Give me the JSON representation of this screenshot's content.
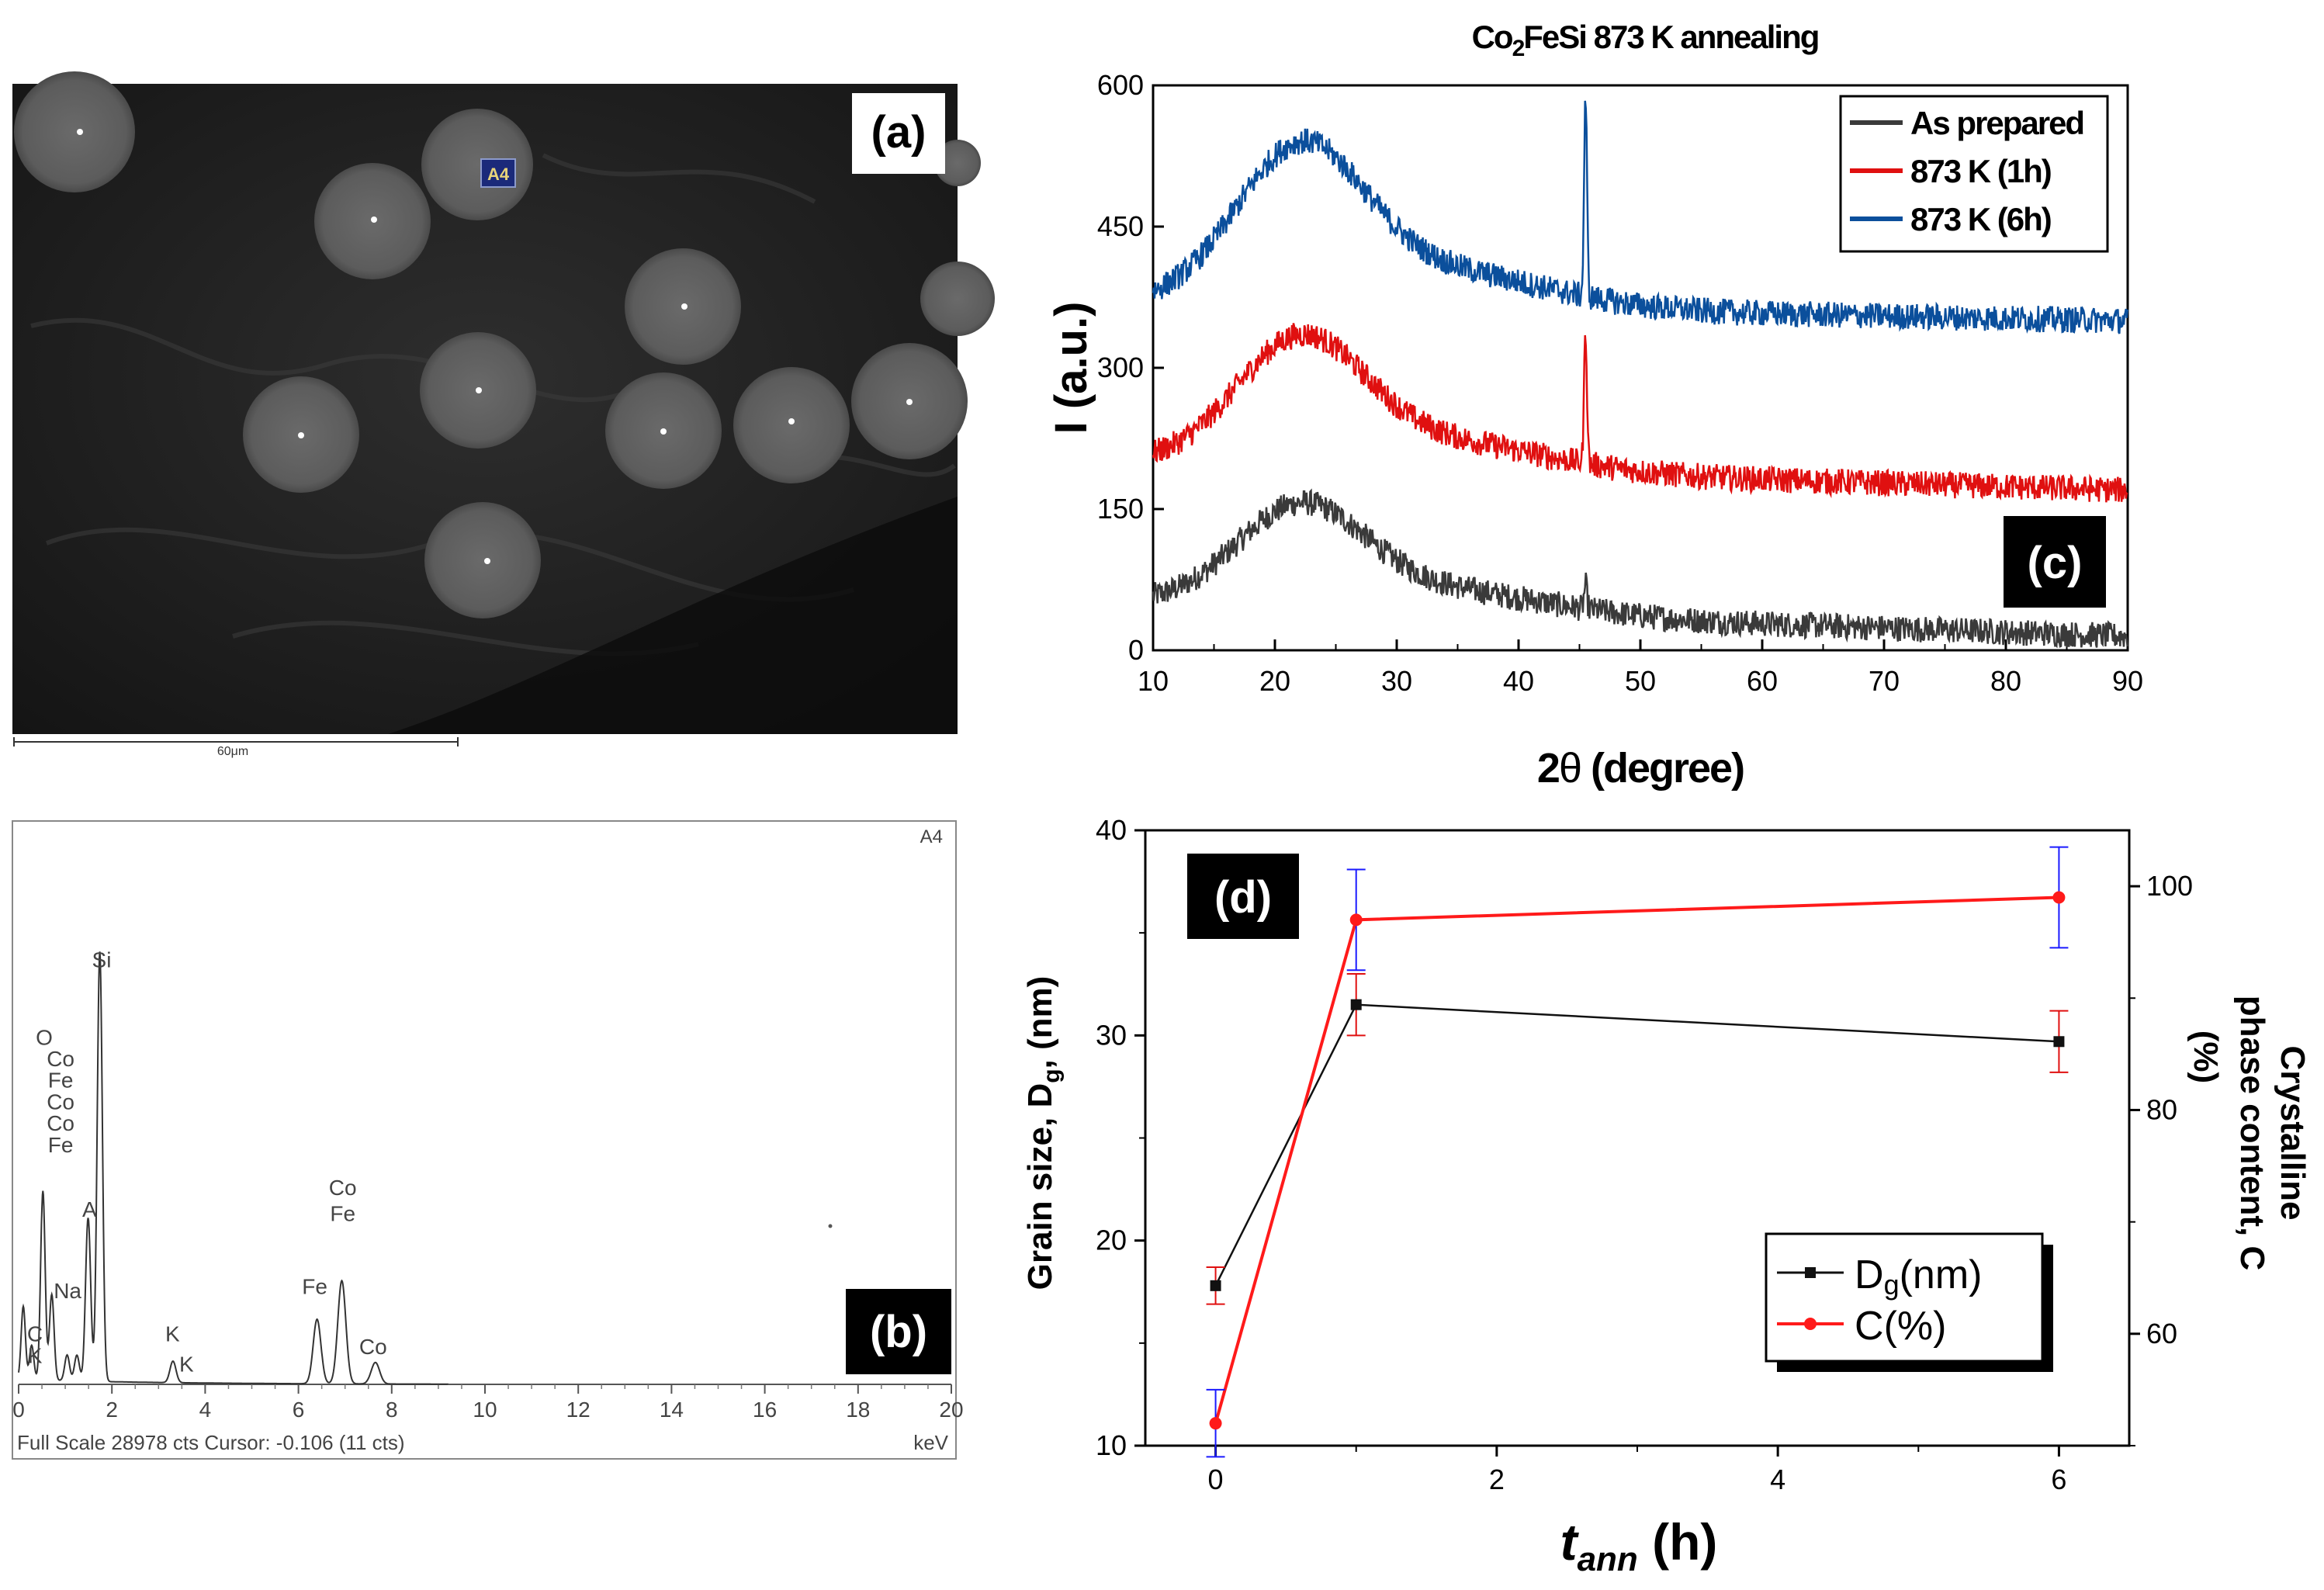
{
  "panel_a": {
    "label": "(a)",
    "spot_label": "A4",
    "scale_label": "60μm"
  },
  "panel_b": {
    "label": "(b)",
    "spectrum_id": "A4",
    "footer_left": "Full Scale 28978 cts Cursor: -0.106  (11 cts)",
    "unit": "keV",
    "x_ticks": [
      "0",
      "2",
      "4",
      "6",
      "8",
      "10",
      "12",
      "14",
      "16",
      "18",
      "20"
    ],
    "peaks": [
      {
        "energy": 0.1,
        "counts": 0.17
      },
      {
        "energy": 0.28,
        "counts": 0.08
      },
      {
        "energy": 0.52,
        "counts": 0.44
      },
      {
        "energy": 0.71,
        "counts": 0.2
      },
      {
        "energy": 1.04,
        "counts": 0.06
      },
      {
        "energy": 1.25,
        "counts": 0.06
      },
      {
        "energy": 1.49,
        "counts": 0.38
      },
      {
        "energy": 1.74,
        "counts": 1.0
      },
      {
        "energy": 3.31,
        "counts": 0.05
      },
      {
        "energy": 6.4,
        "counts": 0.15
      },
      {
        "energy": 6.93,
        "counts": 0.24
      },
      {
        "energy": 7.65,
        "counts": 0.05
      }
    ],
    "annotations": [
      {
        "text": "O",
        "energy": 0.55,
        "level": 0.79
      },
      {
        "text": "Co",
        "energy": 0.9,
        "level": 0.74
      },
      {
        "text": "Fe",
        "energy": 0.9,
        "level": 0.69
      },
      {
        "text": "Co",
        "energy": 0.9,
        "level": 0.64
      },
      {
        "text": "Co",
        "energy": 0.9,
        "level": 0.59
      },
      {
        "text": "Fe",
        "energy": 0.9,
        "level": 0.54
      },
      {
        "text": "Si",
        "energy": 1.78,
        "level": 0.97
      },
      {
        "text": "A",
        "energy": 1.52,
        "level": 0.39
      },
      {
        "text": "Na",
        "energy": 1.05,
        "level": 0.2
      },
      {
        "text": "C",
        "energy": 0.35,
        "level": 0.1
      },
      {
        "text": "K",
        "energy": 0.35,
        "level": 0.05
      },
      {
        "text": "K",
        "energy": 3.3,
        "level": 0.1
      },
      {
        "text": "K",
        "energy": 3.6,
        "level": 0.03
      },
      {
        "text": "Co",
        "energy": 6.95,
        "level": 0.44
      },
      {
        "text": "Fe",
        "energy": 6.95,
        "level": 0.38
      },
      {
        "text": "Fe",
        "energy": 6.35,
        "level": 0.21
      },
      {
        "text": "Co",
        "energy": 7.6,
        "level": 0.07
      }
    ]
  },
  "chart_data": [
    {
      "type": "line",
      "panel": "(c)",
      "title_prefix": "Co",
      "title_sub": "2",
      "title_suffix": "FeSi 873 K annealing",
      "xlabel_prefix": "2",
      "xlabel_theta": "θ",
      "xlabel_suffix": " (degree)",
      "ylabel": "I (a.u.)",
      "xlim": [
        10,
        90
      ],
      "ylim": [
        0,
        600
      ],
      "xticks": [
        "10",
        "20",
        "30",
        "40",
        "50",
        "60",
        "70",
        "80",
        "90"
      ],
      "yticks": [
        "0",
        "150",
        "300",
        "450",
        "600"
      ],
      "legend_position": "top-right",
      "series": [
        {
          "name": "As prepared",
          "color": "#3a3a3a",
          "baseline": 50,
          "hump": 100,
          "tail": 15,
          "peak": 25
        },
        {
          "name": "873 K (1h)",
          "color": "#e01010",
          "baseline": 200,
          "hump": 125,
          "tail": 170,
          "peak": 140
        },
        {
          "name": "873 K (6h)",
          "color": "#0b4f9c",
          "baseline": 370,
          "hump": 155,
          "tail": 350,
          "peak": 210
        }
      ],
      "peak_position": 45.5,
      "hump_center": 22
    },
    {
      "type": "line",
      "panel": "(d)",
      "xlabel_t": "t",
      "xlabel_sub": "ann",
      "xlabel_unit": " (h)",
      "ylabel_left": "Grain size, D",
      "ylabel_left_sub": "g",
      "ylabel_left_unit": ", (nm)",
      "ylabel_right_1": "Crystalline",
      "ylabel_right_2": "phase content, C",
      "ylabel_right_3": "(%)",
      "xlim": [
        -0.5,
        6.5
      ],
      "ylim_left": [
        10,
        40
      ],
      "ylim_right": [
        50,
        105
      ],
      "xticks": [
        "0",
        "2",
        "4",
        "6"
      ],
      "yticks_left": [
        "10",
        "20",
        "30",
        "40"
      ],
      "yticks_right": [
        "60",
        "80",
        "100"
      ],
      "legend_position": "bottom-right",
      "series": [
        {
          "name": "Dg(nm)",
          "legend_main": "D",
          "legend_sub": "g",
          "legend_unit": "(nm)",
          "color": "#111111",
          "axis": "left",
          "x": [
            0,
            1,
            6
          ],
          "y": [
            17.8,
            31.5,
            29.7
          ],
          "err": [
            0.9,
            1.5,
            1.5
          ],
          "err_color": "#e01010"
        },
        {
          "name": "C(%)",
          "legend_main": "C",
          "legend_sub": "",
          "legend_unit": "(%)",
          "color": "#ff1a1a",
          "axis": "right",
          "x": [
            0,
            1,
            6
          ],
          "y": [
            52,
            97,
            99
          ],
          "err": [
            3,
            4.5,
            4.5
          ],
          "err_color": "#1a1aff"
        }
      ]
    }
  ]
}
